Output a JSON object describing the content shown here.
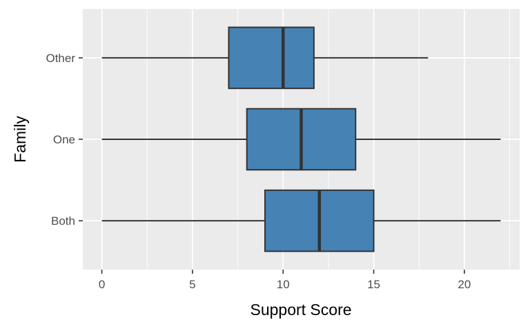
{
  "style": {
    "background": "#FFFFFF",
    "panel_background": "#EBEBEB",
    "grid_color": "#FFFFFF",
    "box_fill": "#4682B4",
    "box_border": "#333333",
    "median_color": "#333333",
    "whisker_color": "#333333",
    "tick_color": "#333333",
    "tick_label_color": "#4D4D4D",
    "axis_title_color": "#000000"
  },
  "chart_data": {
    "type": "boxplot",
    "orientation": "horizontal",
    "title": "",
    "xlabel": "Support Score",
    "ylabel": "Family",
    "categories": [
      "Other",
      "One",
      "Both"
    ],
    "series": [
      {
        "name": "Other",
        "min": 0,
        "q1": 7,
        "median": 10,
        "q3": 11.7,
        "max": 18
      },
      {
        "name": "One",
        "min": 0,
        "q1": 8,
        "median": 11,
        "q3": 14,
        "max": 22
      },
      {
        "name": "Both",
        "min": 0,
        "q1": 9,
        "median": 12,
        "q3": 15,
        "max": 22
      }
    ],
    "xlim": [
      -1.05,
      23.05
    ],
    "x_ticks": [
      0,
      5,
      10,
      15,
      20
    ],
    "x_minor_ticks": [
      2.5,
      7.5,
      12.5,
      17.5,
      22.5
    ],
    "grid": true,
    "legend": false,
    "box_rel_width": 0.75
  }
}
